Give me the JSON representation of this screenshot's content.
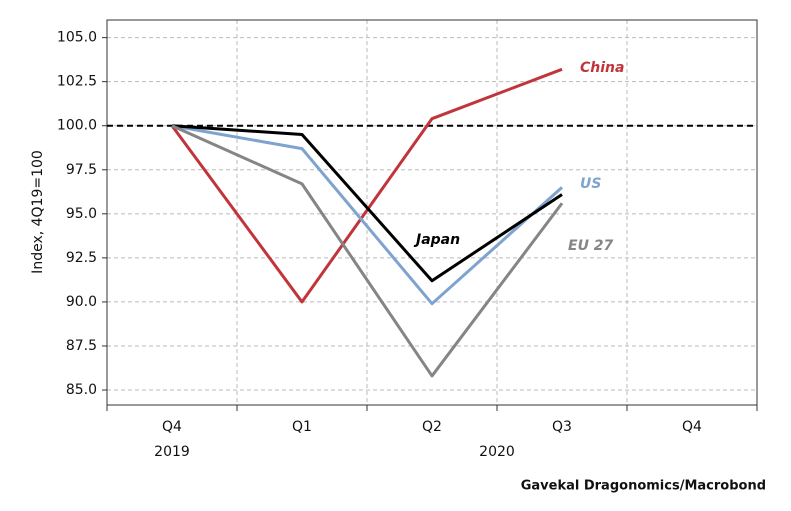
{
  "chart_data": {
    "type": "line",
    "y_label": "Index, 4Q19=100",
    "source": "Gavekal Dragonomics/Macrobond",
    "categories": [
      "Q4",
      "Q1",
      "Q2",
      "Q3",
      "Q4"
    ],
    "years": [
      "2019",
      "2020"
    ],
    "reference_line": 100,
    "series": [
      {
        "name": "China",
        "color": "#c1343b",
        "values": [
          100,
          90.0,
          100.4,
          103.2,
          null
        ]
      },
      {
        "name": "US",
        "color": "#7ea3cf",
        "values": [
          100,
          98.7,
          89.9,
          96.5,
          null
        ]
      },
      {
        "name": "Japan",
        "color": "#000000",
        "values": [
          100,
          99.5,
          91.2,
          96.1,
          null
        ]
      },
      {
        "name": "EU 27",
        "color": "#858585",
        "values": [
          100,
          96.7,
          85.8,
          95.6,
          null
        ]
      }
    ],
    "ylim": [
      84.15,
      106.0
    ],
    "yticks": [
      {
        "value": 85,
        "label": "85.0"
      },
      {
        "value": 87.5,
        "label": "87.5"
      },
      {
        "value": 90,
        "label": "90.0"
      },
      {
        "value": 92.5,
        "label": "92.5"
      },
      {
        "value": 95,
        "label": "95.0"
      },
      {
        "value": 97.5,
        "label": "97.5"
      },
      {
        "value": 100,
        "label": "100.0"
      },
      {
        "value": 102.5,
        "label": "102.5"
      },
      {
        "value": 105,
        "label": "105.0"
      }
    ],
    "grid": true
  }
}
